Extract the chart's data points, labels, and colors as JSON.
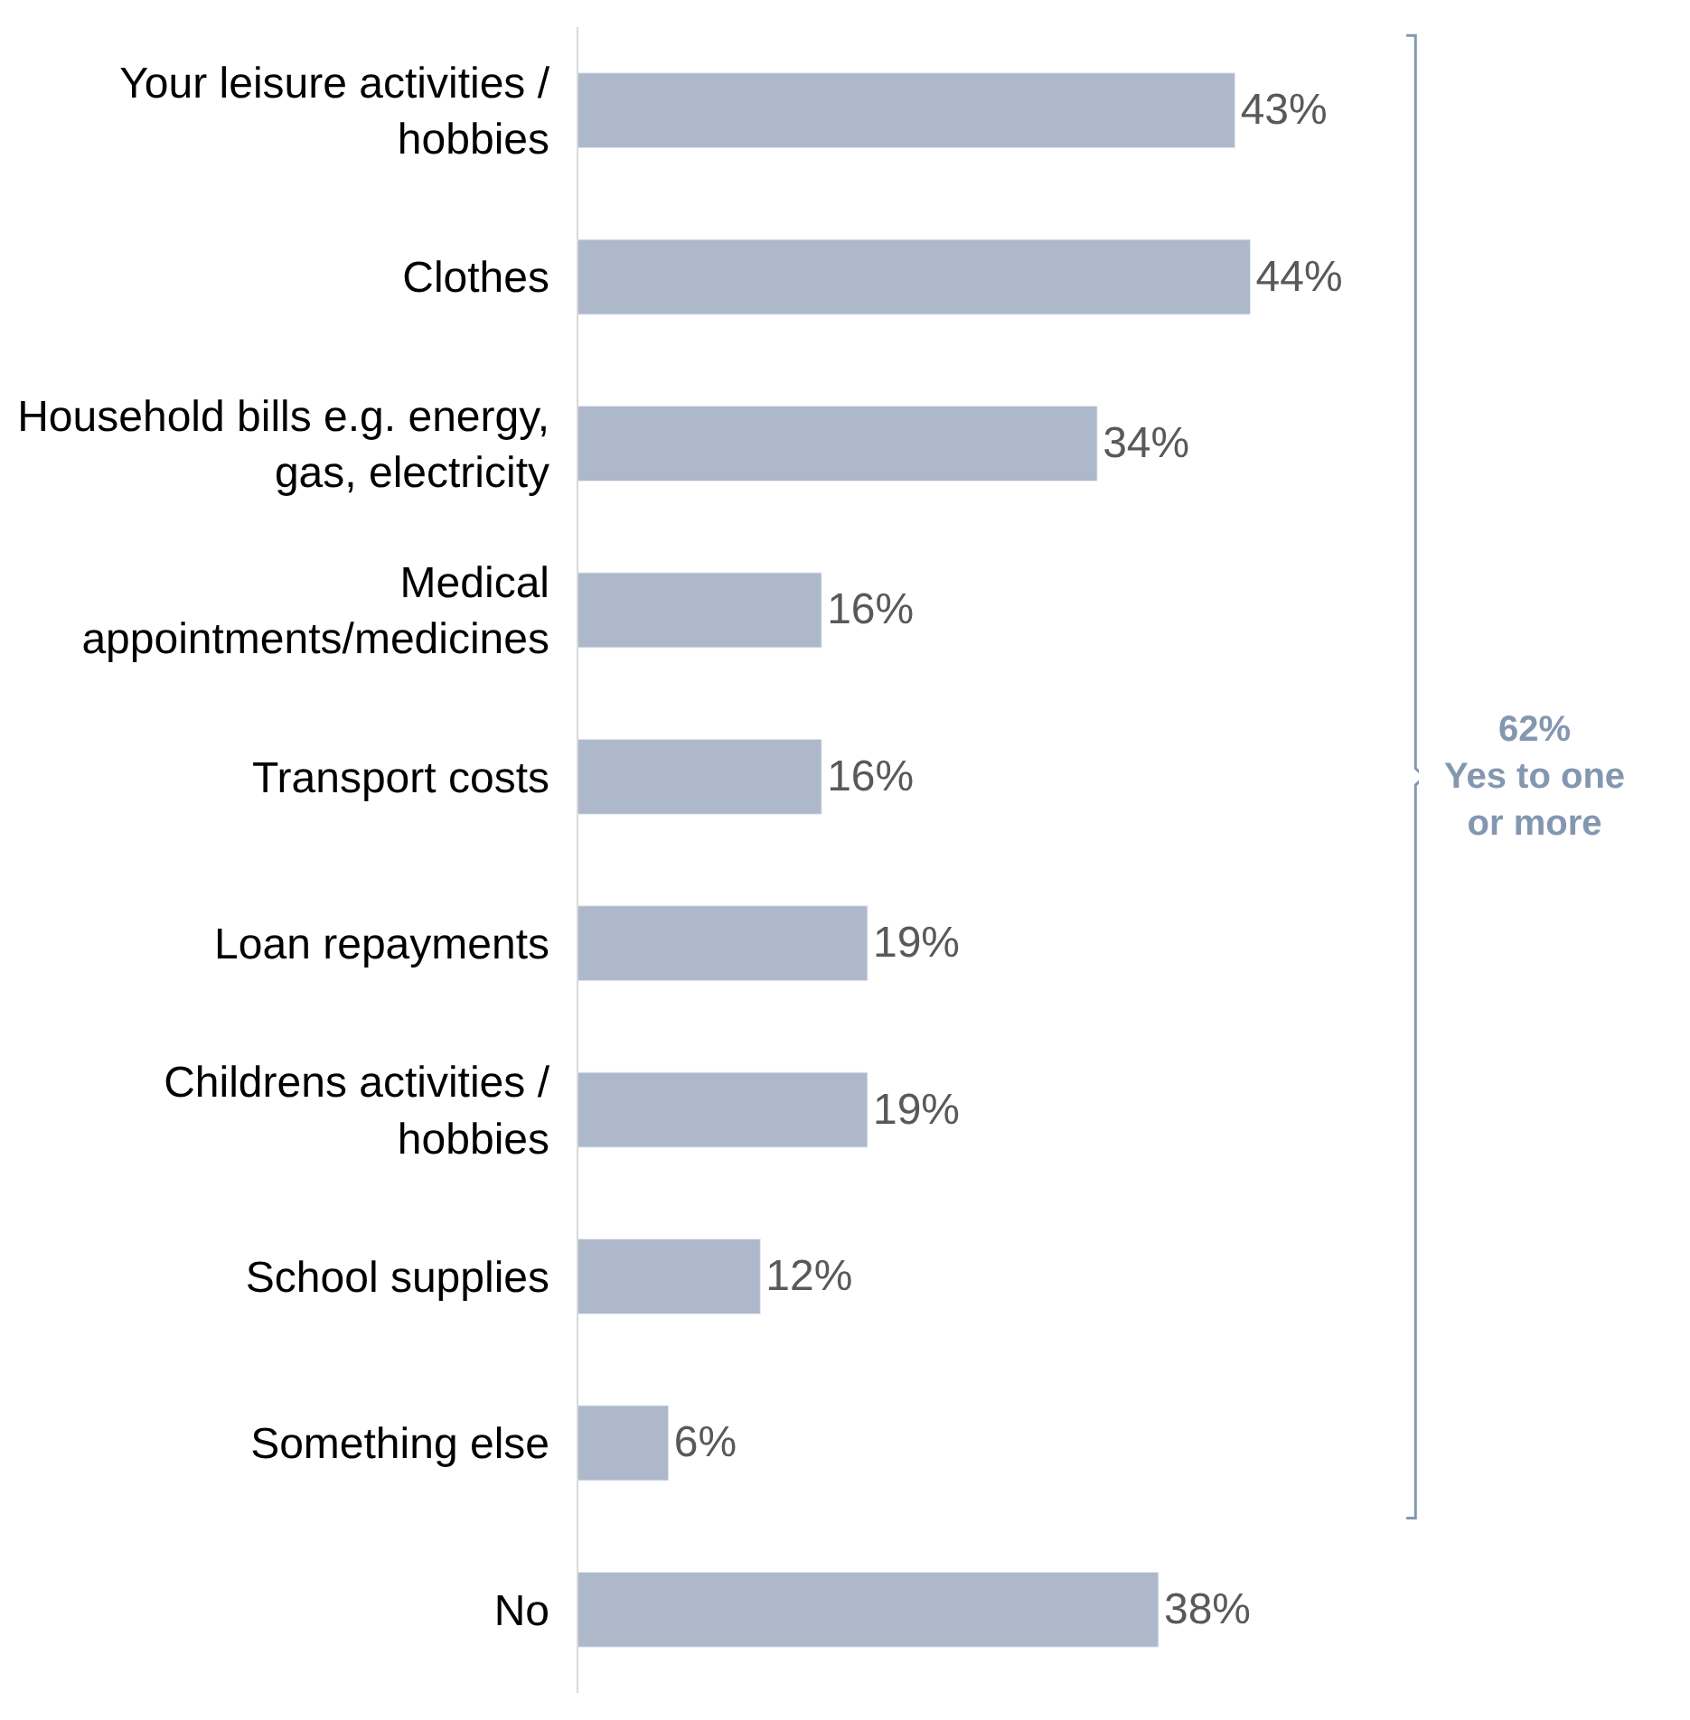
{
  "chart_data": {
    "type": "bar",
    "orientation": "horizontal",
    "categories": [
      "Your leisure activities / hobbies",
      "Clothes",
      "Household bills e.g. energy, gas, electricity",
      "Medical appointments/medicines",
      "Transport costs",
      "Loan repayments",
      "Childrens activities / hobbies",
      "School supplies",
      "Something else",
      "No"
    ],
    "values": [
      43,
      44,
      34,
      16,
      16,
      19,
      19,
      12,
      6,
      38
    ],
    "value_labels": [
      "43%",
      "44%",
      "34%",
      "16%",
      "16%",
      "19%",
      "19%",
      "12%",
      "6%",
      "38%"
    ],
    "color": "#adb9ca",
    "annotations": [
      "62%\nYes to one or more"
    ]
  }
}
